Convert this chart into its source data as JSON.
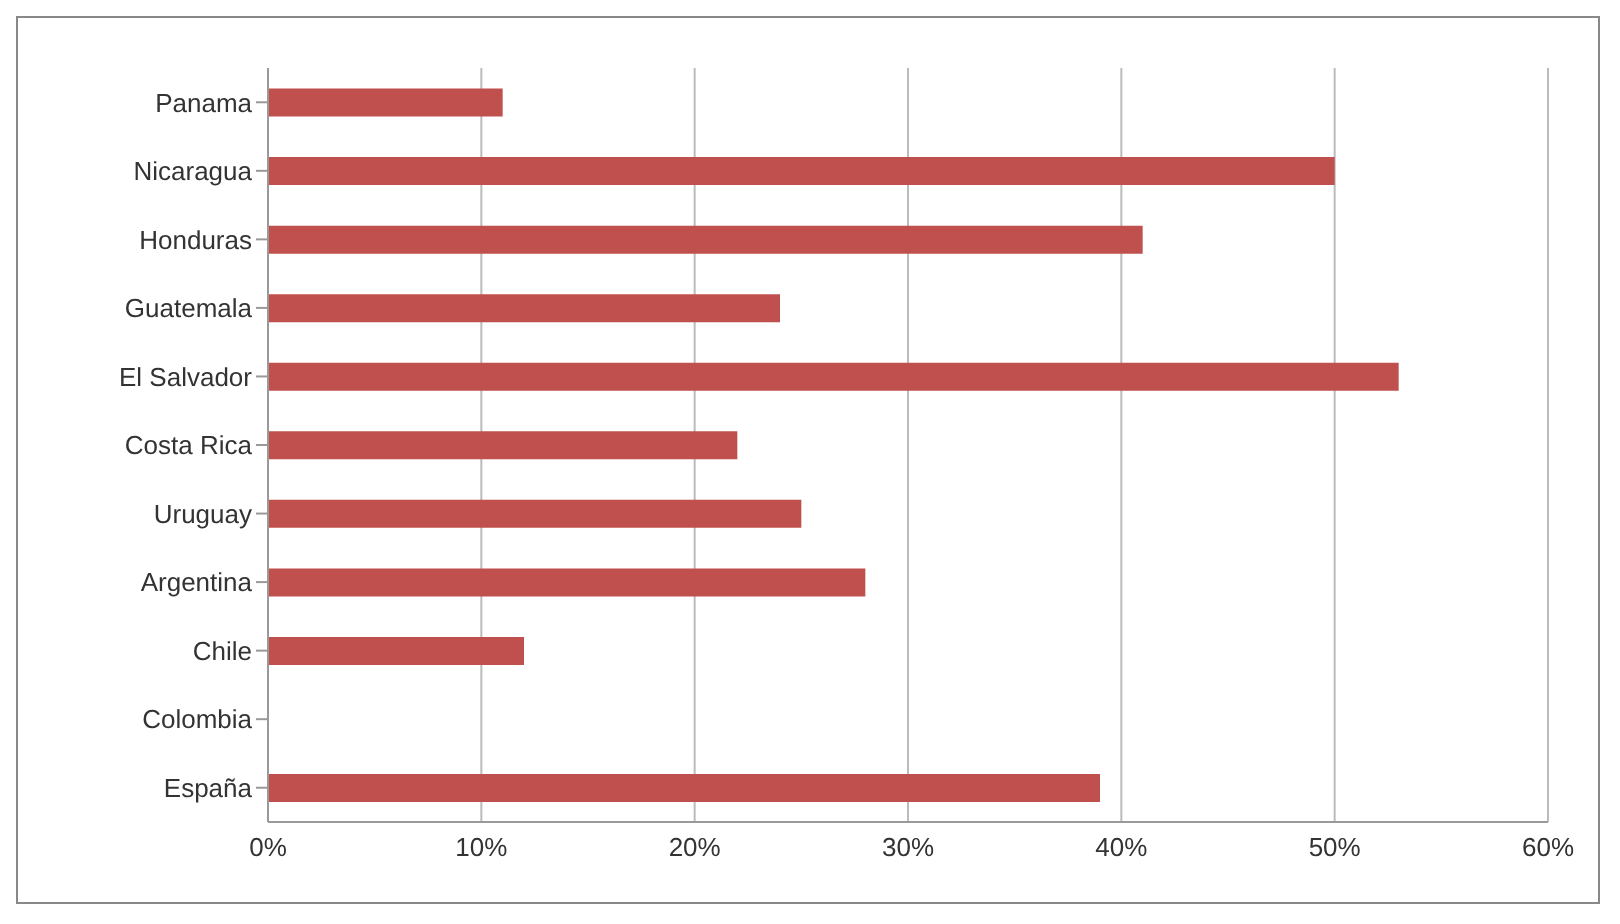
{
  "chart_data": {
    "type": "bar",
    "orientation": "horizontal",
    "categories": [
      "Panama",
      "Nicaragua",
      "Honduras",
      "Guatemala",
      "El Salvador",
      "Costa Rica",
      "Uruguay",
      "Argentina",
      "Chile",
      "Colombia",
      "España"
    ],
    "values": [
      11,
      50,
      41,
      24,
      53,
      22,
      25,
      28,
      12,
      null,
      39
    ],
    "color": "#c0504d",
    "xlim": [
      0,
      60
    ],
    "xticks": [
      {
        "value": 0,
        "label": "0%"
      },
      {
        "value": 10,
        "label": "10%"
      },
      {
        "value": 20,
        "label": "20%"
      },
      {
        "value": 30,
        "label": "30%"
      },
      {
        "value": 40,
        "label": "40%"
      },
      {
        "value": 50,
        "label": "50%"
      },
      {
        "value": 60,
        "label": "60%"
      }
    ],
    "grid": "x",
    "legend": false
  }
}
